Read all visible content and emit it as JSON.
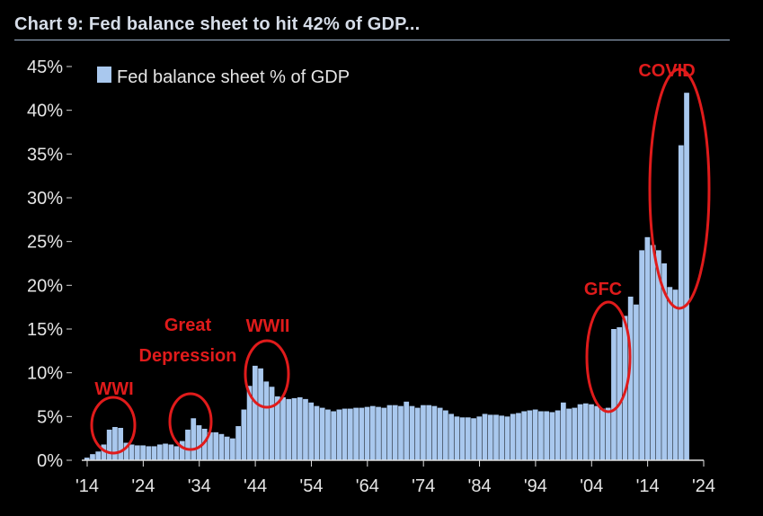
{
  "title": "Chart 9: Fed balance sheet to hit 42% of GDP...",
  "chart_data": {
    "type": "bar",
    "bar_color": "#a9c8ee",
    "annotation_color": "#e01b1b",
    "background": "#000000",
    "ylim": [
      0,
      45
    ],
    "yticks": [
      0,
      5,
      10,
      15,
      20,
      25,
      30,
      35,
      40,
      45
    ],
    "ytick_labels": [
      "0%",
      "5%",
      "10%",
      "15%",
      "20%",
      "25%",
      "30%",
      "35%",
      "40%",
      "45%"
    ],
    "xlim": [
      1914,
      2024
    ],
    "xticks": [
      1914,
      1924,
      1934,
      1944,
      1954,
      1964,
      1974,
      1984,
      1994,
      2004,
      2014,
      2024
    ],
    "xtick_labels": [
      "'14",
      "'24",
      "'34",
      "'44",
      "'54",
      "'64",
      "'74",
      "'84",
      "'94",
      "'04",
      "'14",
      "'24"
    ],
    "legend": {
      "label": "Fed balance sheet % of GDP",
      "position": "top-left"
    },
    "series": [
      {
        "name": "Fed balance sheet % of GDP",
        "x": [
          1914,
          1915,
          1916,
          1917,
          1918,
          1919,
          1920,
          1921,
          1922,
          1923,
          1924,
          1925,
          1926,
          1927,
          1928,
          1929,
          1930,
          1931,
          1932,
          1933,
          1934,
          1935,
          1936,
          1937,
          1938,
          1939,
          1940,
          1941,
          1942,
          1943,
          1944,
          1945,
          1946,
          1947,
          1948,
          1949,
          1950,
          1951,
          1952,
          1953,
          1954,
          1955,
          1956,
          1957,
          1958,
          1959,
          1960,
          1961,
          1962,
          1963,
          1964,
          1965,
          1966,
          1967,
          1968,
          1969,
          1970,
          1971,
          1972,
          1973,
          1974,
          1975,
          1976,
          1977,
          1978,
          1979,
          1980,
          1981,
          1982,
          1983,
          1984,
          1985,
          1986,
          1987,
          1988,
          1989,
          1990,
          1991,
          1992,
          1993,
          1994,
          1995,
          1996,
          1997,
          1998,
          1999,
          2000,
          2001,
          2002,
          2003,
          2004,
          2005,
          2006,
          2007,
          2008,
          2009,
          2010,
          2011,
          2012,
          2013,
          2014,
          2015,
          2016,
          2017,
          2018,
          2019,
          2020,
          2021
        ],
        "values": [
          0.3,
          0.7,
          1.0,
          1.8,
          3.5,
          3.8,
          3.7,
          2.0,
          1.8,
          1.7,
          1.7,
          1.6,
          1.6,
          1.8,
          1.9,
          1.8,
          1.6,
          2.2,
          3.5,
          4.8,
          4.0,
          3.6,
          3.2,
          3.2,
          3.0,
          2.7,
          2.5,
          3.9,
          5.8,
          8.5,
          10.8,
          10.5,
          9.0,
          8.4,
          7.3,
          7.2,
          7.0,
          7.1,
          7.2,
          7.0,
          6.6,
          6.2,
          6.0,
          5.8,
          5.6,
          5.8,
          5.9,
          5.9,
          6.0,
          6.0,
          6.1,
          6.2,
          6.1,
          6.0,
          6.3,
          6.3,
          6.2,
          6.7,
          6.2,
          6.0,
          6.3,
          6.3,
          6.2,
          6.0,
          5.7,
          5.3,
          5.0,
          4.9,
          4.9,
          4.8,
          5.0,
          5.3,
          5.2,
          5.2,
          5.1,
          5.0,
          5.3,
          5.4,
          5.6,
          5.7,
          5.8,
          5.6,
          5.6,
          5.5,
          5.7,
          6.6,
          5.9,
          6.0,
          6.4,
          6.5,
          6.4,
          6.2,
          5.9,
          6.0,
          15.0,
          15.2,
          16.5,
          18.7,
          17.8,
          24.0,
          25.5,
          24.6,
          24.0,
          22.5,
          19.8,
          19.5,
          36.0,
          42.0
        ]
      }
    ],
    "annotations": [
      {
        "label": "WWI"
      },
      {
        "label": "Great"
      },
      {
        "label": "Depression"
      },
      {
        "label": "WWII"
      },
      {
        "label": "GFC"
      },
      {
        "label": "COVID"
      }
    ]
  }
}
